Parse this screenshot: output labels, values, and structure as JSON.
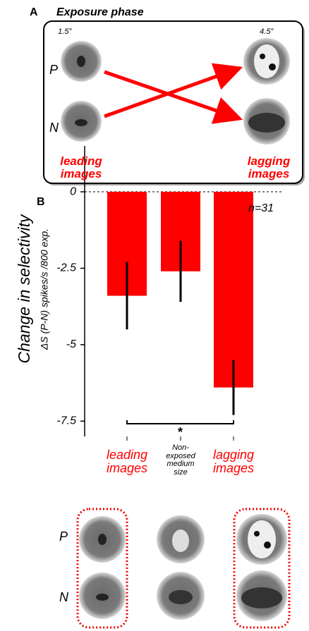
{
  "panel_a": {
    "label": "A",
    "title": "Exposure phase",
    "small_size": "1.5°",
    "large_size": "4.5°",
    "rows": [
      "P",
      "N"
    ],
    "leading": "leading images",
    "lagging": "lagging images"
  },
  "chart_data": {
    "type": "bar",
    "panel_label": "B",
    "y_label": "Change in selectivity",
    "y_sublabel": "ΔS (P-N) spikes/s /800 exp.",
    "annotation": "n=31",
    "significance": "*",
    "categories": [
      "leading images",
      "Non-exposed medium size",
      "lagging images"
    ],
    "category_colors": [
      "#ff0000",
      "#000000",
      "#ff0000"
    ],
    "values": [
      -3.4,
      -2.6,
      -6.4
    ],
    "errors": [
      1.1,
      1.0,
      0.9
    ],
    "color": "#ff0000",
    "ylim": [
      -8,
      1.5
    ],
    "yticks": [
      0,
      -2.5,
      -5,
      -7.5
    ],
    "zero_line": true
  },
  "panel_b_images": {
    "rows": [
      "P",
      "N"
    ]
  }
}
